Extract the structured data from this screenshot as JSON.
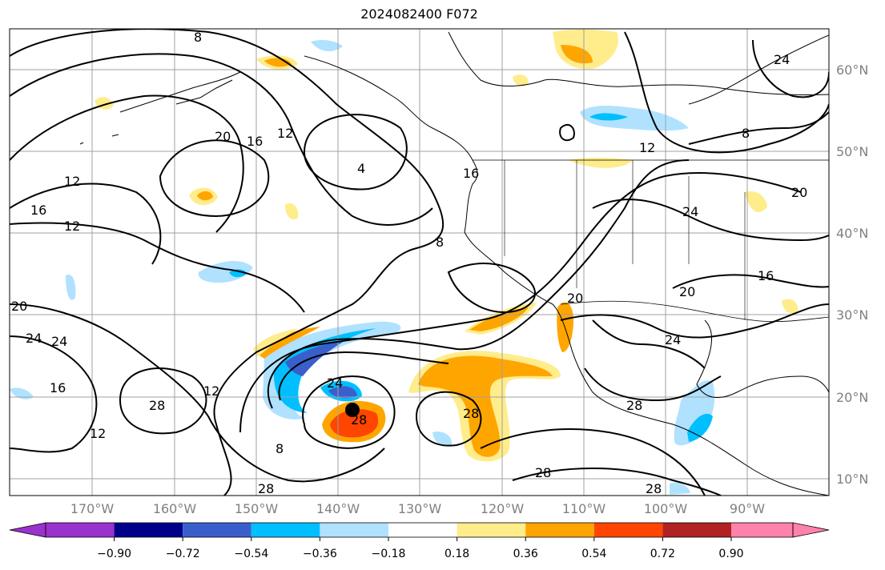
{
  "title": "2024082400 F072",
  "lat_labels": [
    "60°N",
    "50°N",
    "40°N",
    "30°N",
    "20°N",
    "10°N"
  ],
  "lon_labels": [
    "170°W",
    "160°W",
    "150°W",
    "140°W",
    "130°W",
    "120°W",
    "110°W",
    "100°W",
    "90°W"
  ],
  "contour_labels": [
    "8",
    "12",
    "16",
    "20",
    "4",
    "12",
    "16",
    "12",
    "20",
    "24",
    "28",
    "24",
    "16",
    "12",
    "28",
    "12",
    "8",
    "24",
    "28",
    "28",
    "28",
    "28",
    "24",
    "20",
    "16",
    "20",
    "24",
    "8",
    "12",
    "8",
    "24",
    "20",
    "16",
    "28"
  ],
  "colorbar": {
    "ticks": [
      "−0.90",
      "−0.72",
      "−0.54",
      "−0.36",
      "−0.18",
      "0.18",
      "0.36",
      "0.54",
      "0.72",
      "0.90"
    ],
    "colors": [
      "#9a32cd",
      "#00008b",
      "#3a5fcd",
      "#00bfff",
      "#b0e2ff",
      "#ffffff",
      "#ffec8b",
      "#ffa500",
      "#ff4500",
      "#b22222",
      "#ff82ab"
    ]
  },
  "storm_marker": "hurricane-center-dot"
}
